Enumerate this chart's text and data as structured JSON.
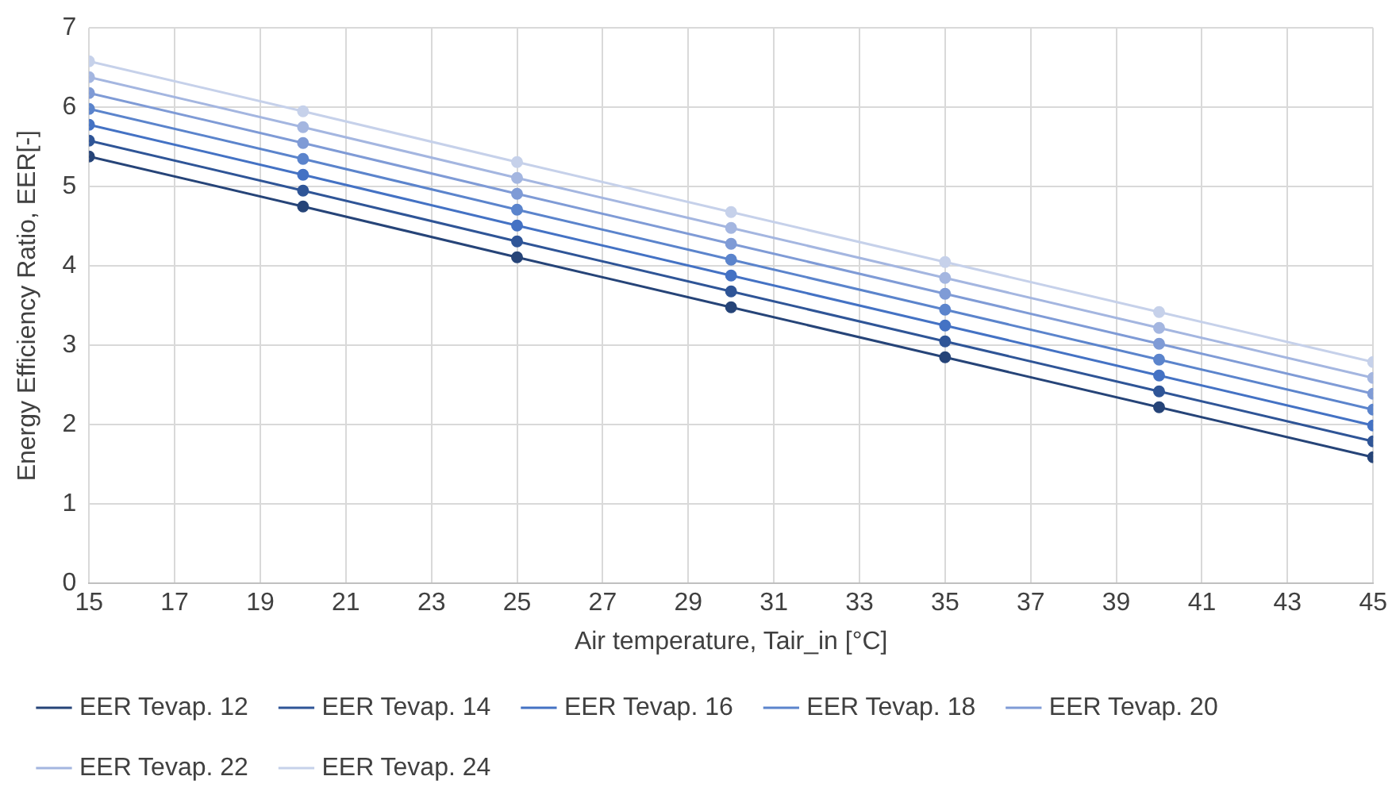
{
  "chart_data": {
    "type": "line",
    "xlabel": "Air temperature, Tair_in [°C]",
    "ylabel": "Energy Efficiency Ratio, EER[-]",
    "x": [
      15,
      20,
      25,
      30,
      35,
      40,
      45
    ],
    "series": [
      {
        "name": "EER Tevap. 12",
        "color": "#264478",
        "values": [
          5.38,
          4.75,
          4.11,
          3.48,
          2.85,
          2.22,
          1.59
        ]
      },
      {
        "name": "EER Tevap. 14",
        "color": "#2f5597",
        "values": [
          5.58,
          4.95,
          4.31,
          3.68,
          3.05,
          2.42,
          1.79
        ]
      },
      {
        "name": "EER Tevap. 16",
        "color": "#4472c4",
        "values": [
          5.78,
          5.15,
          4.51,
          3.88,
          3.25,
          2.62,
          1.99
        ]
      },
      {
        "name": "EER Tevap. 18",
        "color": "#5b84cc",
        "values": [
          5.98,
          5.35,
          4.71,
          4.08,
          3.45,
          2.82,
          2.19
        ]
      },
      {
        "name": "EER Tevap. 20",
        "color": "#7f9bd6",
        "values": [
          6.18,
          5.55,
          4.91,
          4.28,
          3.65,
          3.02,
          2.39
        ]
      },
      {
        "name": "EER Tevap. 22",
        "color": "#a4b6e0",
        "values": [
          6.38,
          5.75,
          5.11,
          4.48,
          3.85,
          3.22,
          2.59
        ]
      },
      {
        "name": "EER Tevap. 24",
        "color": "#c6d1ea",
        "values": [
          6.58,
          5.95,
          5.31,
          4.68,
          4.05,
          3.42,
          2.79
        ]
      }
    ],
    "xlim": [
      15,
      45
    ],
    "xticks": [
      15,
      17,
      19,
      21,
      23,
      25,
      27,
      29,
      31,
      33,
      35,
      37,
      39,
      41,
      43,
      45
    ],
    "ylim": [
      0,
      7
    ],
    "yticks": [
      0,
      1,
      2,
      3,
      4,
      5,
      6,
      7
    ],
    "grid": true,
    "legend": "bottom",
    "marker": "circle",
    "line_style": "solid"
  }
}
